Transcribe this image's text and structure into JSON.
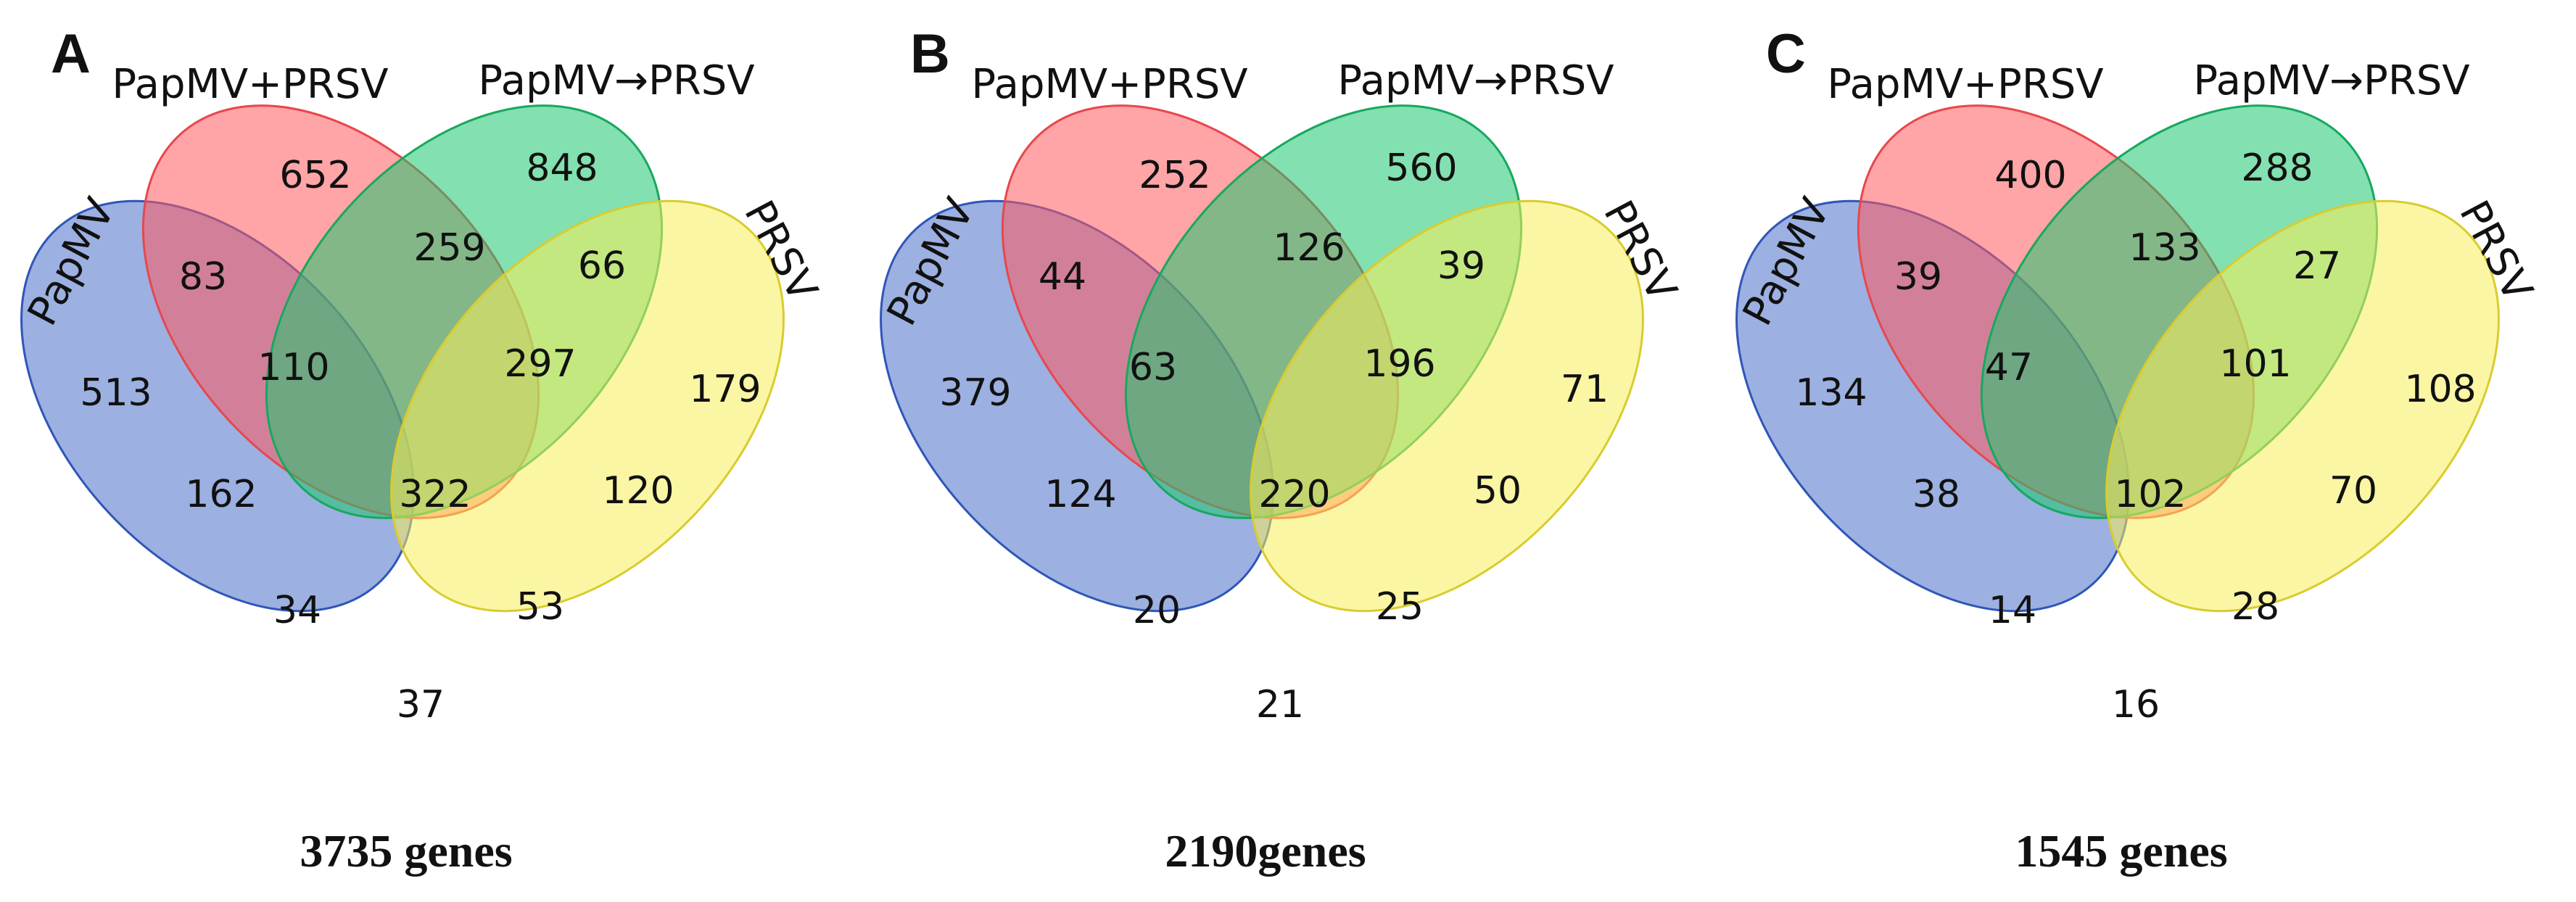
{
  "figure": {
    "set_colors": {
      "papmv": "#4a6fc8",
      "papmv_plus_prsv": "#ff5a5f",
      "papmv_then_prsv": "#1ec770",
      "prsv": "#f7ee5a"
    },
    "panels": [
      {
        "letter": "A",
        "labels": {
          "papmv": "PapMV",
          "papmv_plus_prsv": "PapMV+PRSV",
          "papmv_then_prsv": "PapMV→PRSV",
          "prsv": "PRSV"
        },
        "counts": {
          "papmv_only": "513",
          "papmv_plus_prsv_only": "652",
          "papmv_then_prsv_only": "848",
          "prsv_only": "179",
          "papmv__papmv_plus_prsv": "83",
          "papmv_plus_prsv__papmv_then_prsv": "259",
          "papmv_then_prsv__prsv": "66",
          "papmv__papmv_plus_prsv__papmv_then_prsv": "110",
          "papmv_plus_prsv__papmv_then_prsv__prsv": "297",
          "papmv__papmv_then_prsv": "162",
          "all_four": "322",
          "papmv_plus_prsv__prsv": "120",
          "papmv__papmv_then_prsv__prsv": "34",
          "papmv__papmv_plus_prsv__prsv": "53",
          "papmv__prsv": "37"
        },
        "total": "3735 genes"
      },
      {
        "letter": "B",
        "labels": {
          "papmv": "PapMV",
          "papmv_plus_prsv": "PapMV+PRSV",
          "papmv_then_prsv": "PapMV→PRSV",
          "prsv": "PRSV"
        },
        "counts": {
          "papmv_only": "379",
          "papmv_plus_prsv_only": "252",
          "papmv_then_prsv_only": "560",
          "prsv_only": "71",
          "papmv__papmv_plus_prsv": "44",
          "papmv_plus_prsv__papmv_then_prsv": "126",
          "papmv_then_prsv__prsv": "39",
          "papmv__papmv_plus_prsv__papmv_then_prsv": "63",
          "papmv_plus_prsv__papmv_then_prsv__prsv": "196",
          "papmv__papmv_then_prsv": "124",
          "all_four": "220",
          "papmv_plus_prsv__prsv": "50",
          "papmv__papmv_then_prsv__prsv": "20",
          "papmv__papmv_plus_prsv__prsv": "25",
          "papmv__prsv": "21"
        },
        "total": "2190genes"
      },
      {
        "letter": "C",
        "labels": {
          "papmv": "PapMV",
          "papmv_plus_prsv": "PapMV+PRSV",
          "papmv_then_prsv": "PapMV→PRSV",
          "prsv": "PRSV"
        },
        "counts": {
          "papmv_only": "134",
          "papmv_plus_prsv_only": "400",
          "papmv_then_prsv_only": "288",
          "prsv_only": "108",
          "papmv__papmv_plus_prsv": "39",
          "papmv_plus_prsv__papmv_then_prsv": "133",
          "papmv_then_prsv__prsv": "27",
          "papmv__papmv_plus_prsv__papmv_then_prsv": "47",
          "papmv_plus_prsv__papmv_then_prsv__prsv": "101",
          "papmv__papmv_then_prsv": "38",
          "all_four": "102",
          "papmv_plus_prsv__prsv": "70",
          "papmv__papmv_then_prsv__prsv": "14",
          "papmv__papmv_plus_prsv__prsv": "28",
          "papmv__prsv": "16"
        },
        "total": "1545 genes"
      }
    ]
  }
}
